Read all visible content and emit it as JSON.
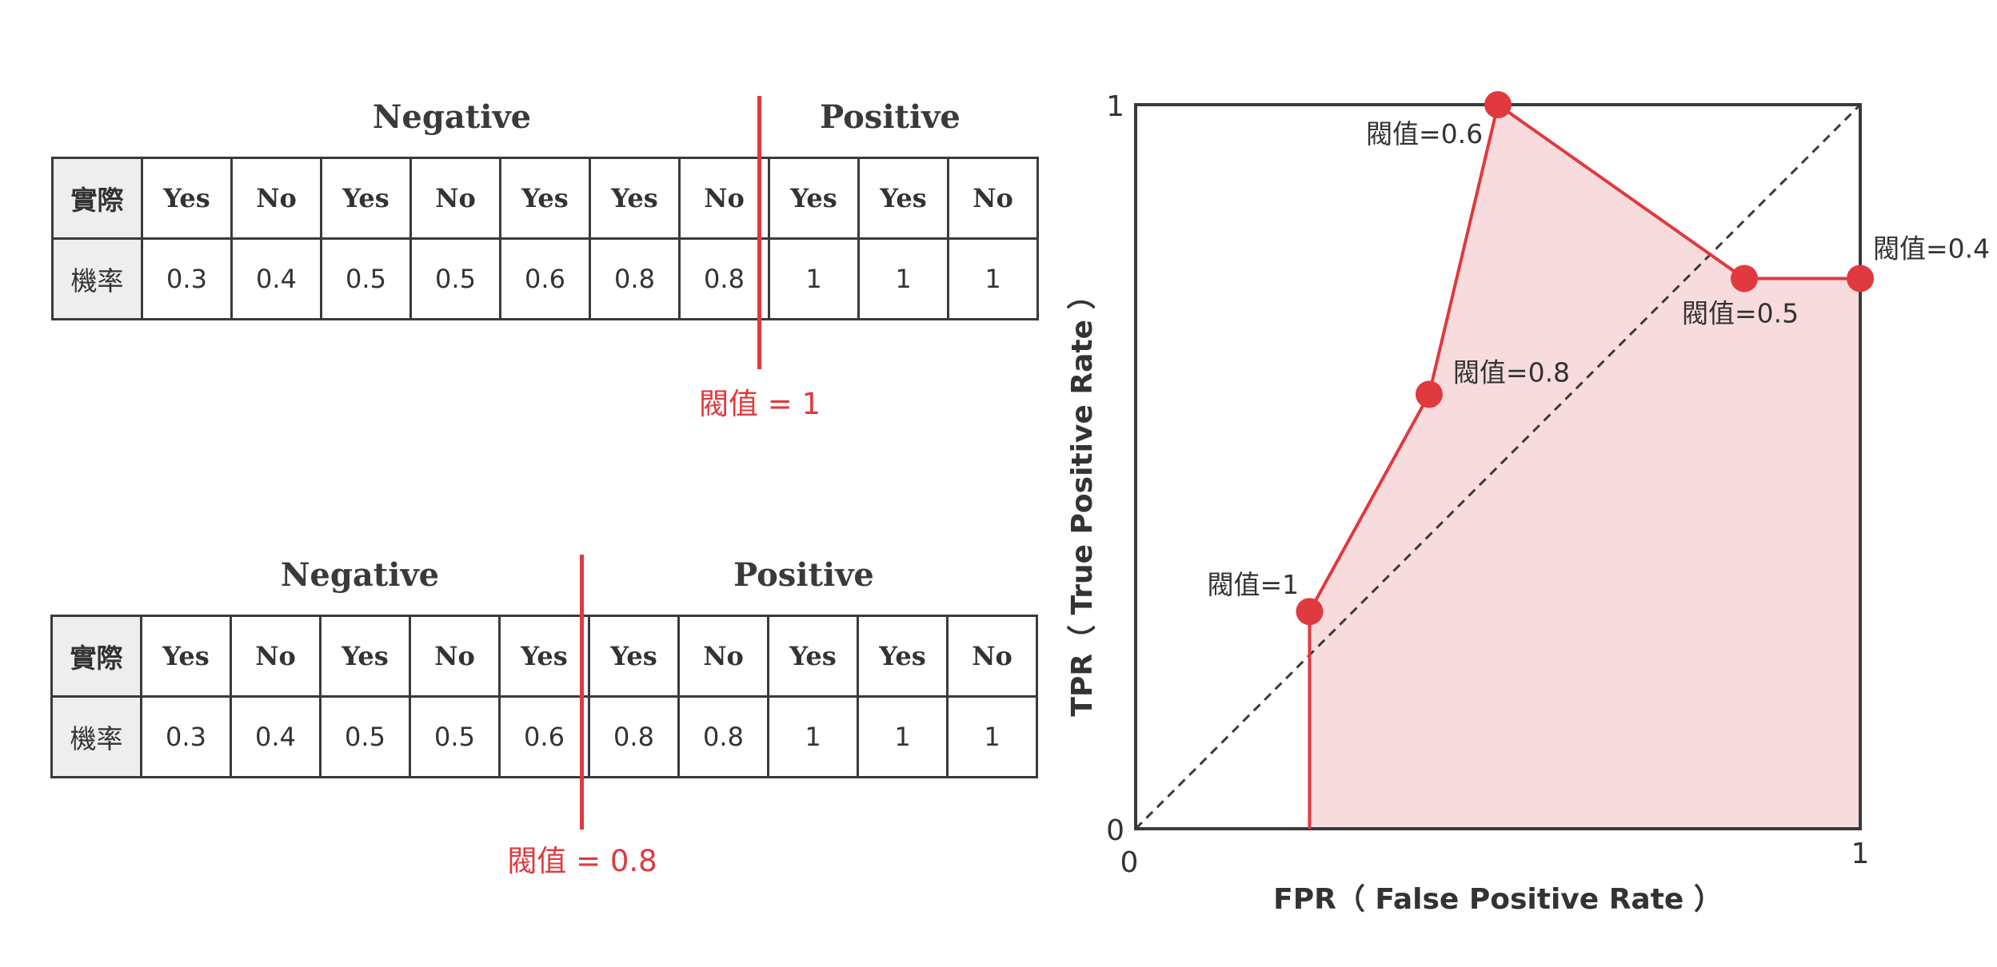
{
  "tables": [
    {
      "neg_label": "Negative",
      "pos_label": "Positive",
      "row1_label": "實際",
      "row2_label": "機率",
      "actual": [
        "Yes",
        "No",
        "Yes",
        "No",
        "Yes",
        "Yes",
        "No",
        "Yes",
        "Yes",
        "No"
      ],
      "prob": [
        "0.3",
        "0.4",
        "0.5",
        "0.5",
        "0.6",
        "0.8",
        "0.8",
        "1",
        "1",
        "1"
      ],
      "threshold_label": "閥值 = 1"
    },
    {
      "neg_label": "Negative",
      "pos_label": "Positive",
      "row1_label": "實際",
      "row2_label": "機率",
      "actual": [
        "Yes",
        "No",
        "Yes",
        "No",
        "Yes",
        "Yes",
        "No",
        "Yes",
        "Yes",
        "No"
      ],
      "prob": [
        "0.3",
        "0.4",
        "0.5",
        "0.5",
        "0.6",
        "0.8",
        "0.8",
        "1",
        "1",
        "1"
      ],
      "threshold_label": "閥值 = 0.8"
    }
  ],
  "chart_data": {
    "type": "line",
    "xlabel": "FPR（ False Positive Rate ）",
    "ylabel": "TPR（ True Positive Rate ）",
    "xlim": [
      0,
      1
    ],
    "ylim": [
      0,
      1
    ],
    "x_ticks": [
      "0",
      "1"
    ],
    "y_ticks": [
      "0",
      "1"
    ],
    "diagonal": true,
    "series": [
      {
        "points": [
          {
            "x": 0.24,
            "y": 0.3,
            "label": "閥值=1"
          },
          {
            "x": 0.405,
            "y": 0.6,
            "label": "閥值=0.8"
          },
          {
            "x": 0.5,
            "y": 1.0,
            "label": "閥值=0.6"
          },
          {
            "x": 0.84,
            "y": 0.76,
            "label": "閥值=0.5"
          },
          {
            "x": 1.0,
            "y": 0.76,
            "label": "閥值=0.4"
          }
        ]
      }
    ],
    "colors": {
      "line": "#e0393e",
      "fill": "#f8dcdd",
      "axis": "#3a3a3a"
    }
  }
}
